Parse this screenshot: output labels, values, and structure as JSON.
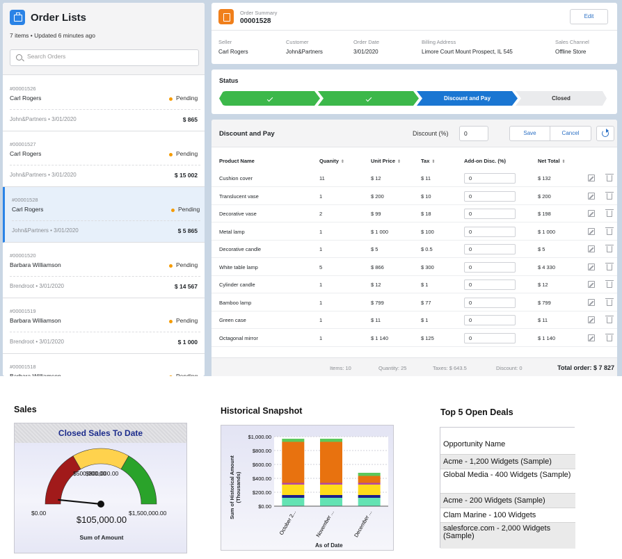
{
  "order_list": {
    "title": "Order Lists",
    "subtitle": "7 items • Updated 6 minutes ago",
    "search_placeholder": "Search Orders",
    "orders": [
      {
        "number": "#00001526",
        "name": "Carl Rogers",
        "status": "Pending",
        "customer": "John&Partners • 3/01/2020",
        "amount": "$ 865"
      },
      {
        "number": "#00001527",
        "name": "Carl Rogers",
        "status": "Pending",
        "customer": "John&Partners • 3/01/2020",
        "amount": "$ 15 002"
      },
      {
        "number": "#00001528",
        "name": "Carl Rogers",
        "status": "Pending",
        "customer": "John&Partners • 3/01/2020",
        "amount": "$ 5 865",
        "selected": true
      },
      {
        "number": "#00001520",
        "name": "Barbara Williamson",
        "status": "Pending",
        "customer": "Brendroot • 3/01/2020",
        "amount": "$ 14 567"
      },
      {
        "number": "#00001519",
        "name": "Barbara Williamson",
        "status": "Pending",
        "customer": "Brendroot • 3/01/2020",
        "amount": "$ 1 000"
      },
      {
        "number": "#00001518",
        "name": "Barbara Williamson",
        "status": "Pending",
        "customer": "",
        "amount": ""
      }
    ]
  },
  "summary": {
    "label": "Order Summary",
    "number": "00001528",
    "edit_label": "Edit",
    "fields": [
      {
        "label": "Seller",
        "value": "Carl Rogers"
      },
      {
        "label": "Customer",
        "value": "John&Partners"
      },
      {
        "label": "Order Date",
        "value": "3/01/2020"
      },
      {
        "label": "Billing Address",
        "value": "Limore Court Mount Prospect, IL 545"
      },
      {
        "label": "Sales Channel",
        "value": "Offline Store"
      }
    ]
  },
  "status": {
    "title": "Status",
    "steps": [
      {
        "label": "",
        "state": "done"
      },
      {
        "label": "",
        "state": "done"
      },
      {
        "label": "Discount and Pay",
        "state": "active"
      },
      {
        "label": "Closed",
        "state": "todo"
      }
    ]
  },
  "discount": {
    "title": "Discount and Pay",
    "discount_label": "Discount (%)",
    "discount_value": "0",
    "save_label": "Save",
    "cancel_label": "Cancel",
    "columns": [
      "Product Name",
      "Quanity",
      "Unit Price",
      "Tax",
      "Add-on Disc. (%)",
      "Net Total"
    ],
    "rows": [
      {
        "product": "Cushion cover",
        "qty": "11",
        "price": "$ 12",
        "tax": "$ 11",
        "addon": "0",
        "net": "$ 132"
      },
      {
        "product": "Translucent vase",
        "qty": "1",
        "price": "$ 200",
        "tax": "$ 10",
        "addon": "0",
        "net": "$ 200"
      },
      {
        "product": "Decorative vase",
        "qty": "2",
        "price": "$ 99",
        "tax": "$ 18",
        "addon": "0",
        "net": "$ 198"
      },
      {
        "product": "Metal lamp",
        "qty": "1",
        "price": "$ 1 000",
        "tax": "$ 100",
        "addon": "0",
        "net": "$ 1 000"
      },
      {
        "product": "Decorative candle",
        "qty": "1",
        "price": "$ 5",
        "tax": "$ 0.5",
        "addon": "0",
        "net": "$ 5"
      },
      {
        "product": "White table lamp",
        "qty": "5",
        "price": "$ 866",
        "tax": "$ 300",
        "addon": "0",
        "net": "$ 4 330"
      },
      {
        "product": "Cylinder candle",
        "qty": "1",
        "price": "$ 12",
        "tax": "$ 1",
        "addon": "0",
        "net": "$ 12"
      },
      {
        "product": "Bamboo lamp",
        "qty": "1",
        "price": "$ 799",
        "tax": "$ 77",
        "addon": "0",
        "net": "$ 799"
      },
      {
        "product": "Green case",
        "qty": "1",
        "price": "$ 11",
        "tax": "$ 1",
        "addon": "0",
        "net": "$ 11"
      },
      {
        "product": "Octagonal mirror",
        "qty": "1",
        "price": "$ 1 140",
        "tax": "$ 125",
        "addon": "0",
        "net": "$ 1 140"
      }
    ],
    "totals": {
      "items": "Items: 10",
      "quantity": "Quantity: 25",
      "taxes": "Taxes: $ 643.5",
      "discount": "Discount: 0",
      "order": "Total order: $ 7 827"
    }
  },
  "sales_widget": {
    "heading": "Sales",
    "title": "Closed Sales To Date",
    "min_label": "$0.00",
    "mid_label": "$500,000.00",
    "mid_overlap_label": "$800,000.00",
    "max_label": "$1,500,000.00",
    "value_label": "$105,000.00",
    "axis_label": "Sum of Amount",
    "value": 105000,
    "min": 0,
    "max": 1500000,
    "band_colors": [
      "#a11a1a",
      "#ffd24d",
      "#2aa32a"
    ]
  },
  "historical_widget": {
    "heading": "Historical Snapshot"
  },
  "chart_data": {
    "type": "bar",
    "stacked": true,
    "categories": [
      "October 2...",
      "November ...",
      "December ..."
    ],
    "series": [
      {
        "values": [
          120,
          120,
          120
        ],
        "color": "#63e3b3"
      },
      {
        "values": [
          40,
          40,
          40
        ],
        "color": "#1b1f8c"
      },
      {
        "values": [
          150,
          150,
          150
        ],
        "color": "#ffdc1a"
      },
      {
        "values": [
          25,
          25,
          25
        ],
        "color": "#b34aa6"
      },
      {
        "values": [
          590,
          590,
          100
        ],
        "color": "#e8720f"
      },
      {
        "values": [
          45,
          45,
          45
        ],
        "color": "#5cc85c"
      }
    ],
    "ylabel": "Sum of Historical Amount (Thousands)",
    "xlabel": "As of Date",
    "y_ticks": [
      "$0.00",
      "$200.00",
      "$400.00",
      "$600.00",
      "$800.00",
      "$1,000.00"
    ],
    "ylim": [
      0,
      1000
    ]
  },
  "deals_widget": {
    "heading": "Top 5 Open Deals",
    "column": "Opportunity Name",
    "deals": [
      "Acme - 1,200 Widgets (Sample)",
      "Global Media - 400 Widgets (Sample)",
      "Acme - 200 Widgets (Sample)",
      "Clam Marine - 100 Widgets",
      "salesforce.com - 2,000 Widgets (Sample)"
    ]
  }
}
